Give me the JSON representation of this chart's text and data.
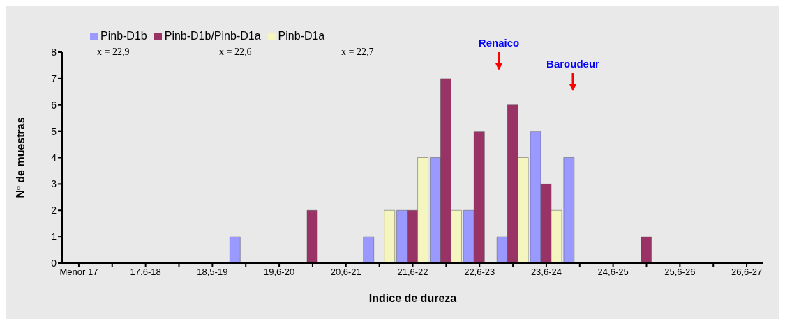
{
  "chart_data": {
    "type": "bar",
    "xlabel": "Indice de dureza",
    "ylabel": "Nº de muestras",
    "categories": [
      "Menor 17",
      null,
      "17.6-18",
      null,
      "18,5-19",
      null,
      "19,6-20",
      null,
      "20,6-21",
      null,
      "21,6-22",
      null,
      "22,6-23",
      null,
      "23,6-24",
      null,
      "24,6-25",
      null,
      "25,6-26",
      null,
      "26,6-27"
    ],
    "series": [
      {
        "name": "Pinb-D1b",
        "color": "#9999ff",
        "values": [
          0,
          0,
          0,
          0,
          0,
          1,
          0,
          0,
          0,
          1,
          2,
          4,
          2,
          1,
          5,
          4,
          0,
          0,
          0,
          0,
          0
        ]
      },
      {
        "name": "Pinb-D1b/Pinb-D1a",
        "color": "#993366",
        "values": [
          0,
          0,
          0,
          0,
          0,
          0,
          0,
          2,
          0,
          0,
          2,
          7,
          5,
          6,
          3,
          0,
          0,
          1,
          0,
          0,
          0
        ]
      },
      {
        "name": "Pinb-D1a",
        "color": "#f5f5c0",
        "values": [
          0,
          0,
          0,
          0,
          0,
          0,
          0,
          0,
          0,
          2,
          4,
          2,
          0,
          4,
          2,
          0,
          0,
          0,
          0,
          0,
          0
        ]
      }
    ],
    "ylim": [
      0,
      8
    ],
    "yticks": [
      0,
      1,
      2,
      3,
      4,
      5,
      6,
      7,
      8
    ],
    "legend": "top left",
    "annotations": [
      "x̄ = 22,9",
      "x̄ = 22,6",
      "x̄ = 22,7",
      "Renaico",
      "Baroudeur"
    ]
  }
}
